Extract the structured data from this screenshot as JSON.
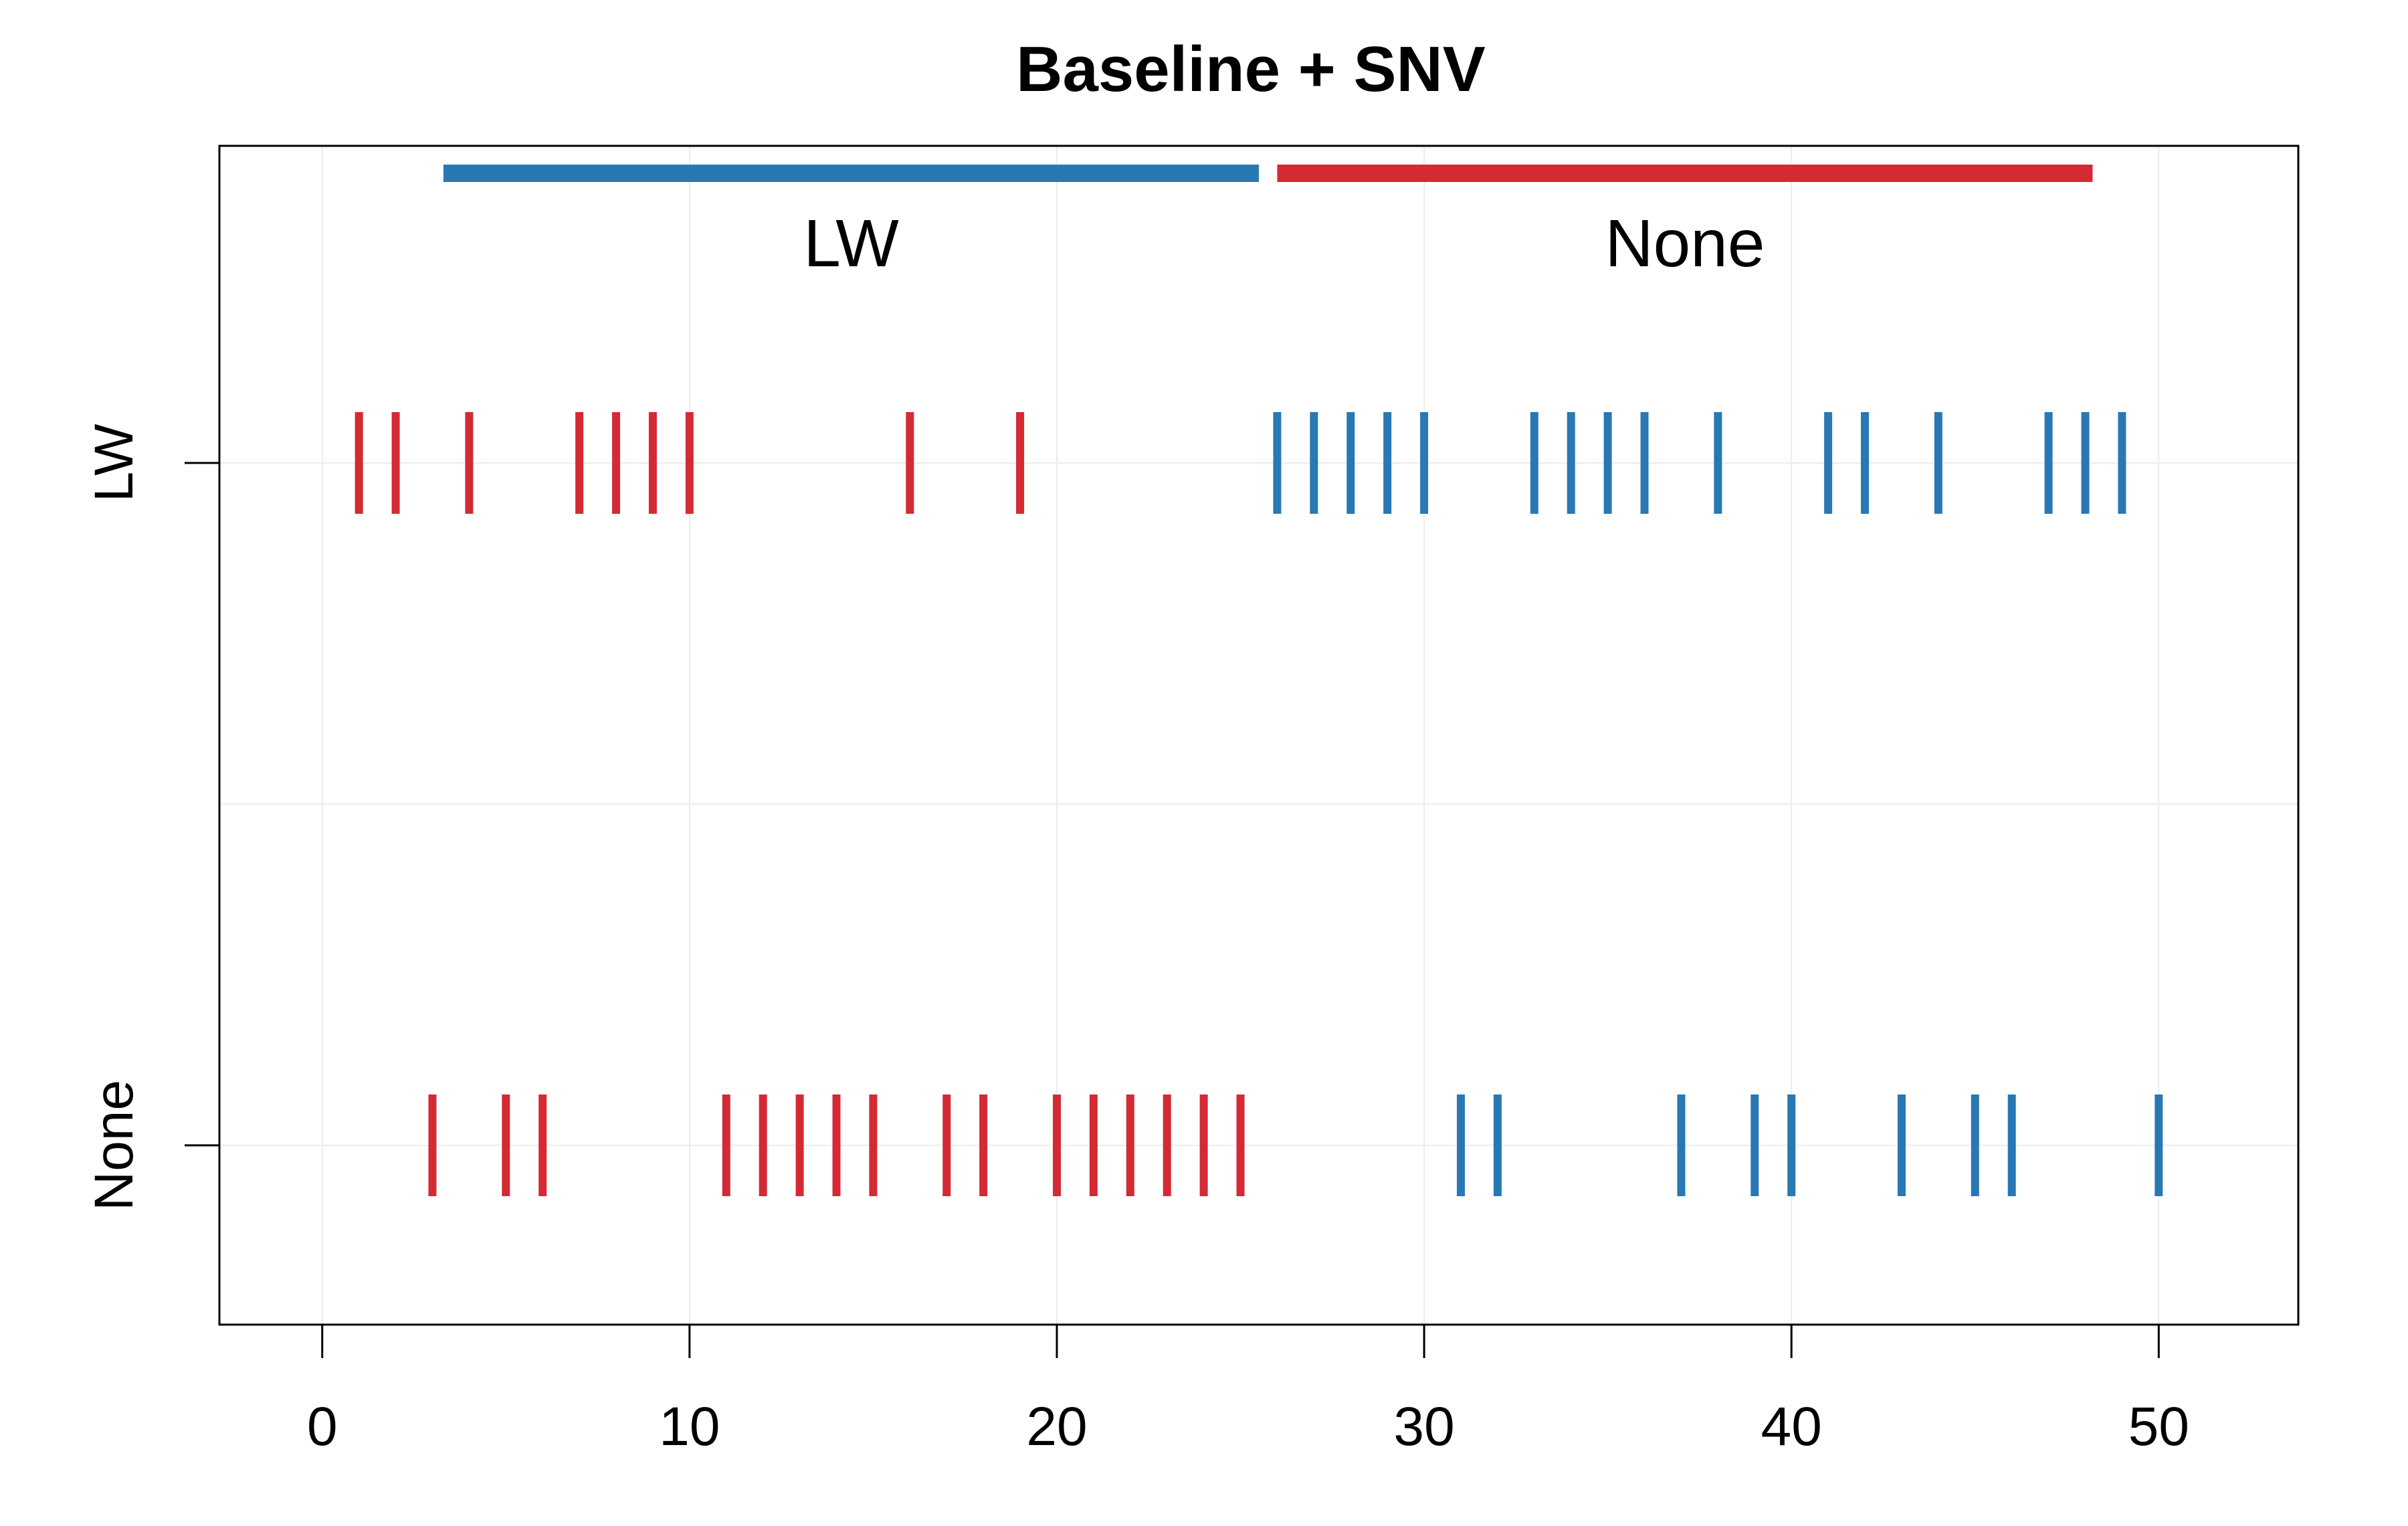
{
  "chart_data": {
    "type": "scatter",
    "title": "Baseline + SNV",
    "xlabel": "",
    "ylabel": "",
    "xlim": [
      -2.8,
      53.8
    ],
    "x_ticks": [
      0,
      10,
      20,
      30,
      40,
      50
    ],
    "x_tick_labels": [
      "0",
      "10",
      "20",
      "30",
      "40",
      "50"
    ],
    "y_categories": [
      "None",
      "LW"
    ],
    "grid": true,
    "colors": {
      "LW": "#2878b4",
      "None": "#d42a33"
    },
    "group_bars": [
      {
        "label": "LW",
        "color": "#2878b4",
        "x_start": 3.3,
        "x_end": 25.5
      },
      {
        "label": "None",
        "color": "#d42a33",
        "x_start": 26.0,
        "x_end": 48.2
      }
    ],
    "series": [
      {
        "row": "LW",
        "color": "#d42a33",
        "x": [
          1,
          2,
          4,
          7,
          8,
          9,
          10,
          16,
          19
        ]
      },
      {
        "row": "LW",
        "color": "#2878b4",
        "x": [
          26,
          27,
          28,
          29,
          30,
          33,
          34,
          35,
          36,
          38,
          41,
          42,
          44,
          47,
          48,
          49
        ]
      },
      {
        "row": "None",
        "color": "#d42a33",
        "x": [
          3,
          5,
          6,
          11,
          12,
          13,
          14,
          15,
          17,
          18,
          20,
          21,
          22,
          23,
          24,
          25
        ]
      },
      {
        "row": "None",
        "color": "#2878b4",
        "x": [
          31,
          32,
          37,
          39,
          40,
          43,
          45,
          46,
          50
        ]
      }
    ]
  }
}
